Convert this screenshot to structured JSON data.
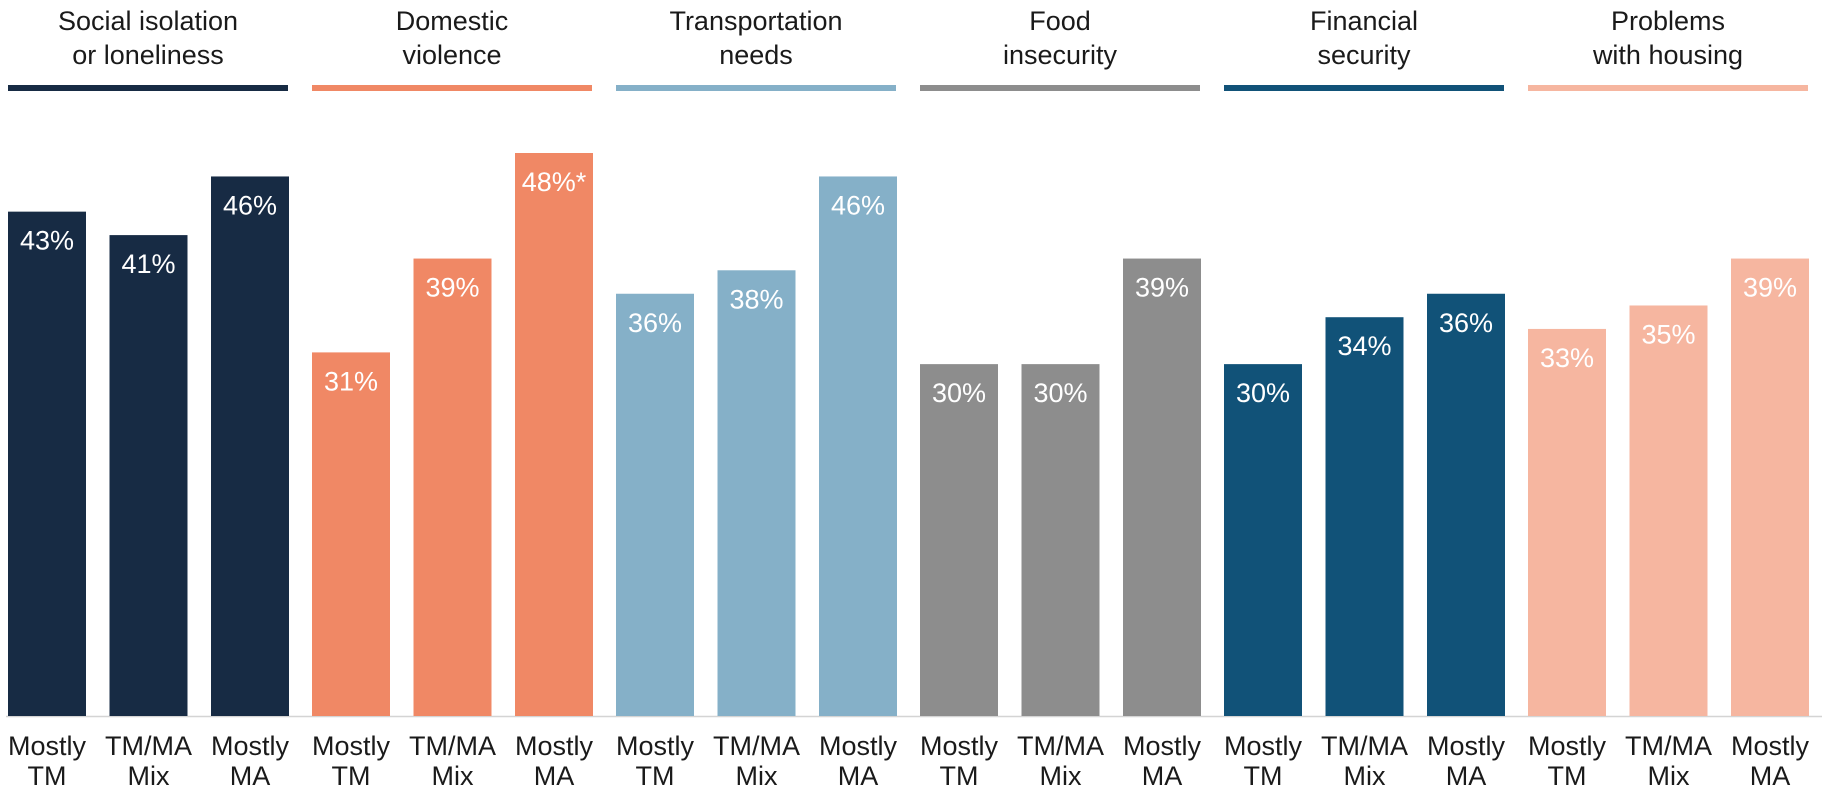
{
  "chart_data": {
    "type": "bar",
    "value_suffix": "%",
    "ylim": [
      0,
      48
    ],
    "grid": false,
    "legend": "none",
    "groups": [
      {
        "title": [
          "Social isolation",
          "or loneliness"
        ],
        "color": "#172b44",
        "label_color": "#ffffff",
        "categories": [
          [
            "Mostly",
            "TM"
          ],
          [
            "TM/MA",
            "Mix"
          ],
          [
            "Mostly",
            "MA"
          ]
        ],
        "values": [
          43,
          41,
          46
        ],
        "labels": [
          "43%",
          "41%",
          "46%"
        ]
      },
      {
        "title": [
          "Domestic",
          "violence"
        ],
        "color": "#f08865",
        "label_color": "#ffffff",
        "categories": [
          [
            "Mostly",
            "TM"
          ],
          [
            "TM/MA",
            "Mix"
          ],
          [
            "Mostly",
            "MA"
          ]
        ],
        "values": [
          31,
          39,
          48
        ],
        "labels": [
          "31%",
          "39%",
          "48%*"
        ]
      },
      {
        "title": [
          "Transportation",
          "needs"
        ],
        "color": "#85b0c8",
        "label_color": "#ffffff",
        "categories": [
          [
            "Mostly",
            "TM"
          ],
          [
            "TM/MA",
            "Mix"
          ],
          [
            "Mostly",
            "MA"
          ]
        ],
        "values": [
          36,
          38,
          46
        ],
        "labels": [
          "36%",
          "38%",
          "46%"
        ]
      },
      {
        "title": [
          "Food",
          "insecurity"
        ],
        "color": "#8d8d8d",
        "label_color": "#ffffff",
        "categories": [
          [
            "Mostly",
            "TM"
          ],
          [
            "TM/MA",
            "Mix"
          ],
          [
            "Mostly",
            "MA"
          ]
        ],
        "values": [
          30,
          30,
          39
        ],
        "labels": [
          "30%",
          "30%",
          "39%"
        ]
      },
      {
        "title": [
          "Financial",
          "security"
        ],
        "color": "#115278",
        "label_color": "#ffffff",
        "categories": [
          [
            "Mostly",
            "TM"
          ],
          [
            "TM/MA",
            "Mix"
          ],
          [
            "Mostly",
            "MA"
          ]
        ],
        "values": [
          30,
          34,
          36
        ],
        "labels": [
          "30%",
          "34%",
          "36%"
        ]
      },
      {
        "title": [
          "Problems",
          "with housing"
        ],
        "color": "#f6b6a0",
        "label_color": "#ffffff",
        "categories": [
          [
            "Mostly",
            "TM"
          ],
          [
            "TM/MA",
            "Mix"
          ],
          [
            "Mostly",
            "MA"
          ]
        ],
        "values": [
          33,
          35,
          39
        ],
        "labels": [
          "33%",
          "35%",
          "39%"
        ]
      }
    ]
  }
}
